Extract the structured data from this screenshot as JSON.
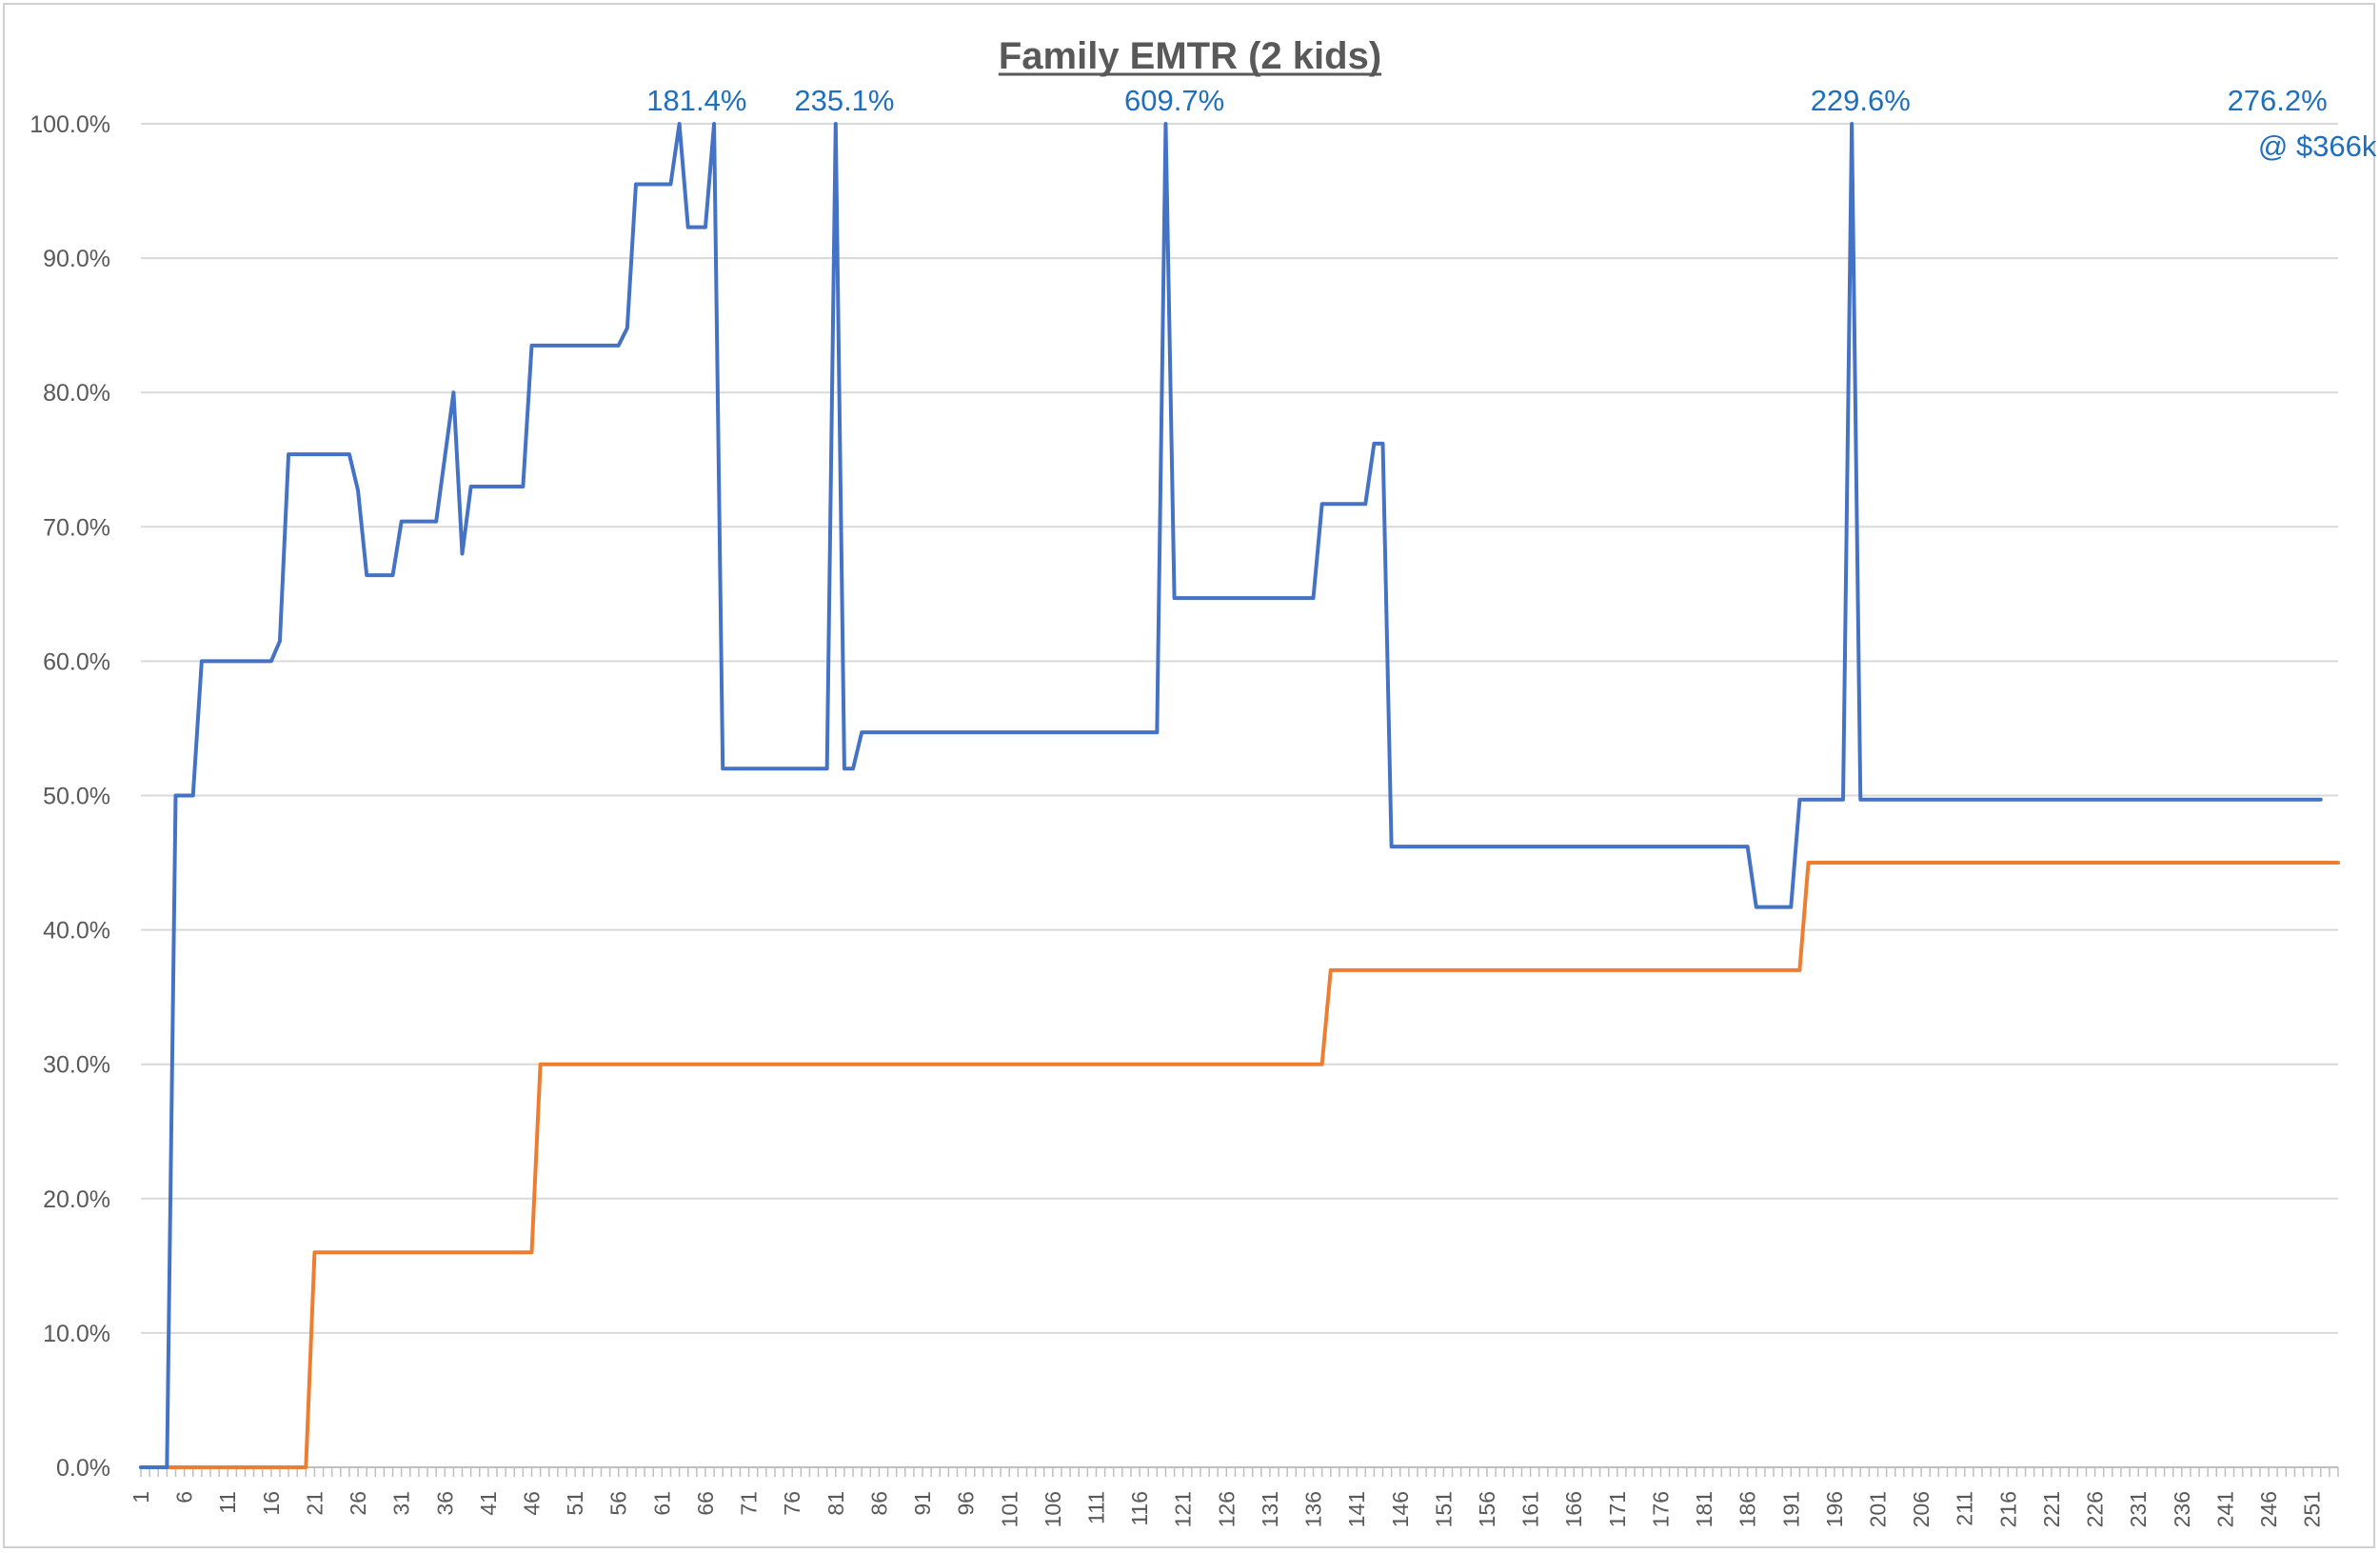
{
  "chart_data": {
    "type": "line",
    "title": "Family EMTR (2 kids)",
    "xlabel": "",
    "ylabel": "",
    "x_range": [
      1,
      254
    ],
    "x_tick_step": 5,
    "y_ticks": [
      "0.0%",
      "10.0%",
      "20.0%",
      "30.0%",
      "40.0%",
      "50.0%",
      "60.0%",
      "70.0%",
      "80.0%",
      "90.0%",
      "100.0%"
    ],
    "ylim": [
      0,
      1
    ],
    "grid": true,
    "legend": "none",
    "colors": {
      "blue": "#4472c4",
      "orange": "#ed7d31",
      "annotation": "#1f6fbf"
    },
    "series": [
      {
        "color": "#4472c4",
        "points": [
          [
            1,
            0
          ],
          [
            4,
            0
          ],
          [
            5,
            0.5
          ],
          [
            7,
            0.5
          ],
          [
            8,
            0.6
          ],
          [
            16,
            0.6
          ],
          [
            17,
            0.615
          ],
          [
            18,
            0.754
          ],
          [
            25,
            0.754
          ],
          [
            26,
            0.727
          ],
          [
            27,
            0.664
          ],
          [
            30,
            0.664
          ],
          [
            31,
            0.704
          ],
          [
            35,
            0.704
          ],
          [
            37,
            0.8
          ],
          [
            38,
            0.68
          ],
          [
            39,
            0.73
          ],
          [
            45,
            0.73
          ],
          [
            46,
            0.835
          ],
          [
            56,
            0.835
          ],
          [
            57,
            0.848
          ],
          [
            58,
            0.955
          ],
          [
            62,
            0.955
          ],
          [
            63,
            1.0
          ],
          [
            64,
            0.923
          ],
          [
            66,
            0.923
          ],
          [
            67,
            1.0
          ],
          [
            68,
            0.52
          ],
          [
            80,
            0.52
          ],
          [
            81,
            1.0
          ],
          [
            82,
            0.52
          ],
          [
            83,
            0.52
          ],
          [
            84,
            0.547
          ],
          [
            118,
            0.547
          ],
          [
            119,
            1.0
          ],
          [
            120,
            0.647
          ],
          [
            136,
            0.647
          ],
          [
            137,
            0.717
          ],
          [
            142,
            0.717
          ],
          [
            143,
            0.762
          ],
          [
            144,
            0.762
          ],
          [
            145,
            0.462
          ],
          [
            186,
            0.462
          ],
          [
            187,
            0.417
          ],
          [
            191,
            0.417
          ],
          [
            192,
            0.497
          ],
          [
            197,
            0.497
          ],
          [
            198,
            1.0
          ],
          [
            199,
            0.497
          ],
          [
            252,
            0.497
          ]
        ]
      },
      {
        "color": "#ed7d31",
        "points": [
          [
            3,
            0
          ],
          [
            20,
            0
          ],
          [
            21,
            0.16
          ],
          [
            46,
            0.16
          ],
          [
            47,
            0.3
          ],
          [
            137,
            0.3
          ],
          [
            138,
            0.37
          ],
          [
            192,
            0.37
          ],
          [
            193,
            0.45
          ],
          [
            254,
            0.45
          ]
        ]
      }
    ],
    "annotations": [
      {
        "text": "181.4%",
        "x": 65
      },
      {
        "text": "235.1%",
        "x": 82
      },
      {
        "text": "609.7%",
        "x": 120
      },
      {
        "text": "229.6%",
        "x": 199
      },
      {
        "text": "276.2%",
        "x": 247,
        "line2": "@ $366k"
      }
    ]
  }
}
